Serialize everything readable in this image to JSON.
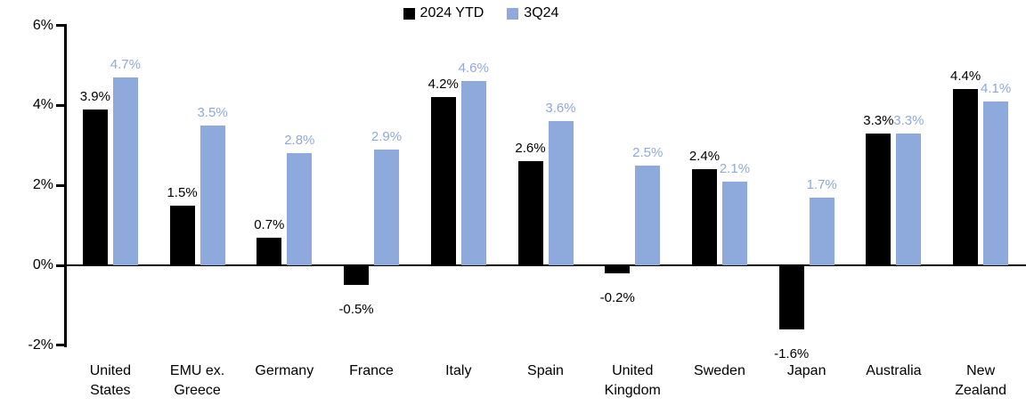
{
  "chart_data": {
    "type": "bar",
    "title": "",
    "xlabel": "",
    "ylabel": "",
    "ylim": [
      -2,
      6
    ],
    "y_ticks": [
      6,
      4,
      2,
      0,
      -2
    ],
    "y_tick_labels": [
      "6%",
      "4%",
      "2%",
      "0%",
      "-2%"
    ],
    "grid": false,
    "legend_position": "top-center",
    "categories": [
      "United States",
      "EMU ex. Greece",
      "Germany",
      "France",
      "Italy",
      "Spain",
      "United Kingdom",
      "Sweden",
      "Japan",
      "Australia",
      "New Zealand"
    ],
    "category_label_lines": [
      [
        "United",
        "States"
      ],
      [
        "EMU ex.",
        "Greece"
      ],
      [
        "Germany"
      ],
      [
        "France"
      ],
      [
        "Italy"
      ],
      [
        "Spain"
      ],
      [
        "United",
        "Kingdom"
      ],
      [
        "Sweden"
      ],
      [
        "Japan"
      ],
      [
        "Australia"
      ],
      [
        "New",
        "Zealand"
      ]
    ],
    "series": [
      {
        "name": "2024 YTD",
        "color": "#000000",
        "values": [
          3.9,
          1.5,
          0.7,
          -0.5,
          4.2,
          2.6,
          -0.2,
          2.4,
          -1.6,
          3.3,
          4.4
        ],
        "data_labels": [
          "3.9%",
          "1.5%",
          "0.7%",
          "-0.5%",
          "4.2%",
          "2.6%",
          "-0.2%",
          "2.4%",
          "-1.6%",
          "3.3%",
          "4.4%"
        ]
      },
      {
        "name": "3Q24",
        "color": "#8EA9DB",
        "values": [
          4.7,
          3.5,
          2.8,
          2.9,
          4.6,
          3.6,
          2.5,
          2.1,
          1.7,
          3.3,
          4.1
        ],
        "data_labels": [
          "4.7%",
          "3.5%",
          "2.8%",
          "2.9%",
          "4.6%",
          "3.6%",
          "2.5%",
          "2.1%",
          "1.7%",
          "3.3%",
          "4.1%"
        ]
      }
    ],
    "data_label_colors": {
      "series_0": "#000000",
      "series_1": "#8EA9DB"
    }
  }
}
